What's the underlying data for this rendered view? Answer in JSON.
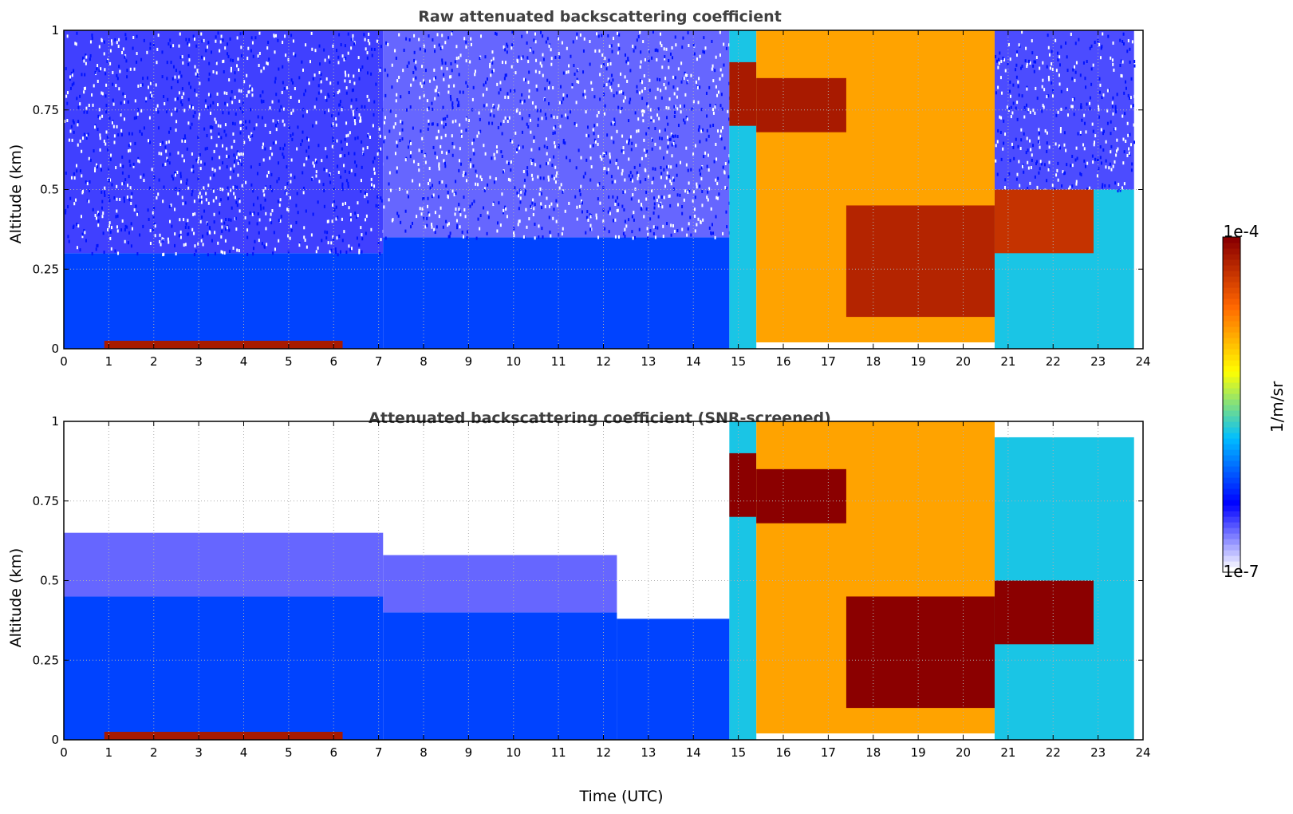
{
  "chart_data": [
    {
      "type": "heatmap",
      "title": "Raw attenuated backscattering coefficient",
      "xlabel": "",
      "ylabel": "Altitude (km)",
      "xlim": [
        0,
        24
      ],
      "ylim": [
        0,
        1
      ],
      "x_ticks": [
        "0",
        "1",
        "2",
        "3",
        "4",
        "5",
        "6",
        "7",
        "8",
        "9",
        "10",
        "11",
        "12",
        "13",
        "14",
        "15",
        "16",
        "17",
        "18",
        "19",
        "20",
        "21",
        "22",
        "23",
        "24"
      ],
      "y_ticks": [
        "0",
        "0.25",
        "0.5",
        "0.75",
        "1"
      ],
      "grid": true,
      "regions": [
        {
          "time": [
            0,
            7.1
          ],
          "altitude": [
            0,
            0.3
          ],
          "level": 0.27
        },
        {
          "time": [
            0,
            7.1
          ],
          "altitude": [
            0.3,
            1.0
          ],
          "level": 0.15,
          "noise": true
        },
        {
          "time": [
            0.9,
            6.2
          ],
          "altitude": [
            0,
            0.025
          ],
          "level": 0.95
        },
        {
          "time": [
            7.1,
            14.8
          ],
          "altitude": [
            0,
            0.35
          ],
          "level": 0.27
        },
        {
          "time": [
            7.1,
            14.8
          ],
          "altitude": [
            0.35,
            1.0
          ],
          "level": 0.12,
          "noise": true
        },
        {
          "time": [
            14.8,
            15.4
          ],
          "altitude": [
            0,
            1.0
          ],
          "level": 0.42
        },
        {
          "time": [
            14.8,
            15.4
          ],
          "altitude": [
            0.7,
            0.9
          ],
          "level": 0.95
        },
        {
          "time": [
            15.4,
            20.7
          ],
          "altitude": [
            0.02,
            1.0
          ],
          "level": 0.72
        },
        {
          "time": [
            15.4,
            17.4
          ],
          "altitude": [
            0.68,
            0.85
          ],
          "level": 0.95
        },
        {
          "time": [
            17.4,
            20.7
          ],
          "altitude": [
            0.1,
            0.45
          ],
          "level": 0.93
        },
        {
          "time": [
            20.7,
            23.8
          ],
          "altitude": [
            0,
            0.5
          ],
          "level": 0.42
        },
        {
          "time": [
            20.7,
            23.8
          ],
          "altitude": [
            0.5,
            1.0
          ],
          "level": 0.14,
          "noise": true
        },
        {
          "time": [
            20.7,
            22.9
          ],
          "altitude": [
            0.3,
            0.5
          ],
          "level": 0.9
        }
      ]
    },
    {
      "type": "heatmap",
      "title": "Attenuated backscattering coefficient (SNR-screened)",
      "xlabel": "Time (UTC)",
      "ylabel": "Altitude (km)",
      "xlim": [
        0,
        24
      ],
      "ylim": [
        0,
        1
      ],
      "x_ticks": [
        "0",
        "1",
        "2",
        "3",
        "4",
        "5",
        "6",
        "7",
        "8",
        "9",
        "10",
        "11",
        "12",
        "13",
        "14",
        "15",
        "16",
        "17",
        "18",
        "19",
        "20",
        "21",
        "22",
        "23",
        "24"
      ],
      "y_ticks": [
        "0",
        "0.25",
        "0.5",
        "0.75",
        "1"
      ],
      "grid": true,
      "regions": [
        {
          "time": [
            0,
            7.1
          ],
          "altitude": [
            0,
            0.45
          ],
          "level": 0.27
        },
        {
          "time": [
            0,
            7.1
          ],
          "altitude": [
            0.45,
            0.65
          ],
          "level": 0.12
        },
        {
          "time": [
            0.9,
            6.2
          ],
          "altitude": [
            0,
            0.025
          ],
          "level": 0.95
        },
        {
          "time": [
            7.1,
            12.3
          ],
          "altitude": [
            0,
            0.4
          ],
          "level": 0.27
        },
        {
          "time": [
            7.1,
            12.3
          ],
          "altitude": [
            0.4,
            0.58
          ],
          "level": 0.12
        },
        {
          "time": [
            12.3,
            14.8
          ],
          "altitude": [
            0,
            0.38
          ],
          "level": 0.27
        },
        {
          "time": [
            14.8,
            15.4
          ],
          "altitude": [
            0,
            1.0
          ],
          "level": 0.42
        },
        {
          "time": [
            14.8,
            15.4
          ],
          "altitude": [
            0.7,
            0.9
          ],
          "level": 1.0
        },
        {
          "time": [
            15.4,
            20.7
          ],
          "altitude": [
            0.02,
            1.0
          ],
          "level": 0.72
        },
        {
          "time": [
            15.4,
            17.4
          ],
          "altitude": [
            0.68,
            0.85
          ],
          "level": 1.0
        },
        {
          "time": [
            17.4,
            20.7
          ],
          "altitude": [
            0.1,
            0.45
          ],
          "level": 1.0
        },
        {
          "time": [
            20.7,
            23.8
          ],
          "altitude": [
            0,
            0.95
          ],
          "level": 0.42
        },
        {
          "time": [
            20.7,
            22.9
          ],
          "altitude": [
            0.3,
            0.5
          ],
          "level": 1.0
        }
      ]
    }
  ],
  "colorbar": {
    "label": "1/m/sr",
    "min_label": "1e-7",
    "max_label": "1e-4",
    "colormap": [
      "#ffffff",
      "#0000ff",
      "#00bfff",
      "#ffff00",
      "#ff6600",
      "#8b0000"
    ]
  }
}
